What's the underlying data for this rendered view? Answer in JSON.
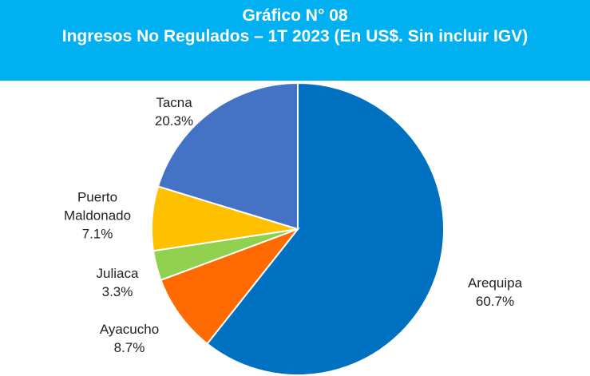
{
  "chart_data": {
    "type": "pie",
    "title": "Gráfico N° 08",
    "subtitle": "Ingresos No Regulados – 1T 2023 (En US$.  Sin incluir IGV)",
    "categories": [
      "Arequipa",
      "Ayacucho",
      "Juliaca",
      "Puerto Maldonado",
      "Tacna"
    ],
    "values": [
      60.7,
      8.7,
      3.3,
      7.1,
      20.3
    ],
    "value_labels": [
      "60.7%",
      "8.7%",
      "3.3%",
      "7.1%",
      "20.3%"
    ],
    "colors": [
      "#0070c0",
      "#ff6a00",
      "#92d050",
      "#ffc000",
      "#4472c4"
    ]
  }
}
